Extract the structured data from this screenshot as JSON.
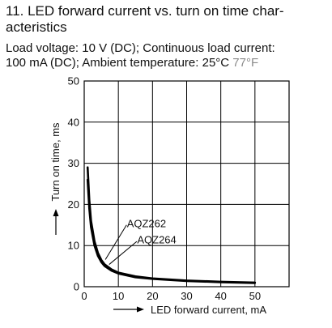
{
  "header": {
    "title_line1": "11. LED forward current vs. turn on time char-",
    "title_line2": "acteristics",
    "conditions_line1": "Load voltage: 10 V (DC); Continuous load current:",
    "conditions_line2_main": "100 mA (DC); Ambient temperature: 25°C ",
    "conditions_line2_alt": "77°F"
  },
  "colors": {
    "text": "#111111",
    "secondary_text": "#8a8a8a",
    "grid": "#000000",
    "curve": "#000000"
  },
  "chart_data": {
    "type": "line",
    "title": "",
    "xlabel": "LED forward current, mA",
    "ylabel": "Turn on time, ms",
    "xlim": [
      0,
      60
    ],
    "ylim": [
      0,
      50
    ],
    "xticks": [
      0,
      10,
      20,
      30,
      40,
      50
    ],
    "yticks": [
      0,
      10,
      20,
      30,
      40,
      50
    ],
    "grid": true,
    "series": [
      {
        "name": "AQZ262",
        "x": [
          1,
          1.5,
          2,
          3,
          4,
          5,
          6,
          8,
          10,
          15,
          20,
          30,
          40,
          50
        ],
        "y": [
          29,
          21,
          16,
          11,
          8.2,
          6.5,
          5.4,
          4.2,
          3.4,
          2.5,
          2.0,
          1.5,
          1.2,
          1.0
        ]
      },
      {
        "name": "AQZ264",
        "x": [
          1,
          1.5,
          2,
          3,
          4,
          5,
          6,
          8,
          10,
          15,
          20,
          30,
          40,
          50
        ],
        "y": [
          26,
          19,
          14.5,
          10,
          7.5,
          6.0,
          5.0,
          3.9,
          3.2,
          2.3,
          1.9,
          1.4,
          1.1,
          0.9
        ]
      }
    ],
    "annotations": [
      {
        "text": "AQZ262",
        "x": 12.5,
        "y": 15.3
      },
      {
        "text": "AQZ264",
        "x": 15.5,
        "y": 11.3
      }
    ]
  }
}
